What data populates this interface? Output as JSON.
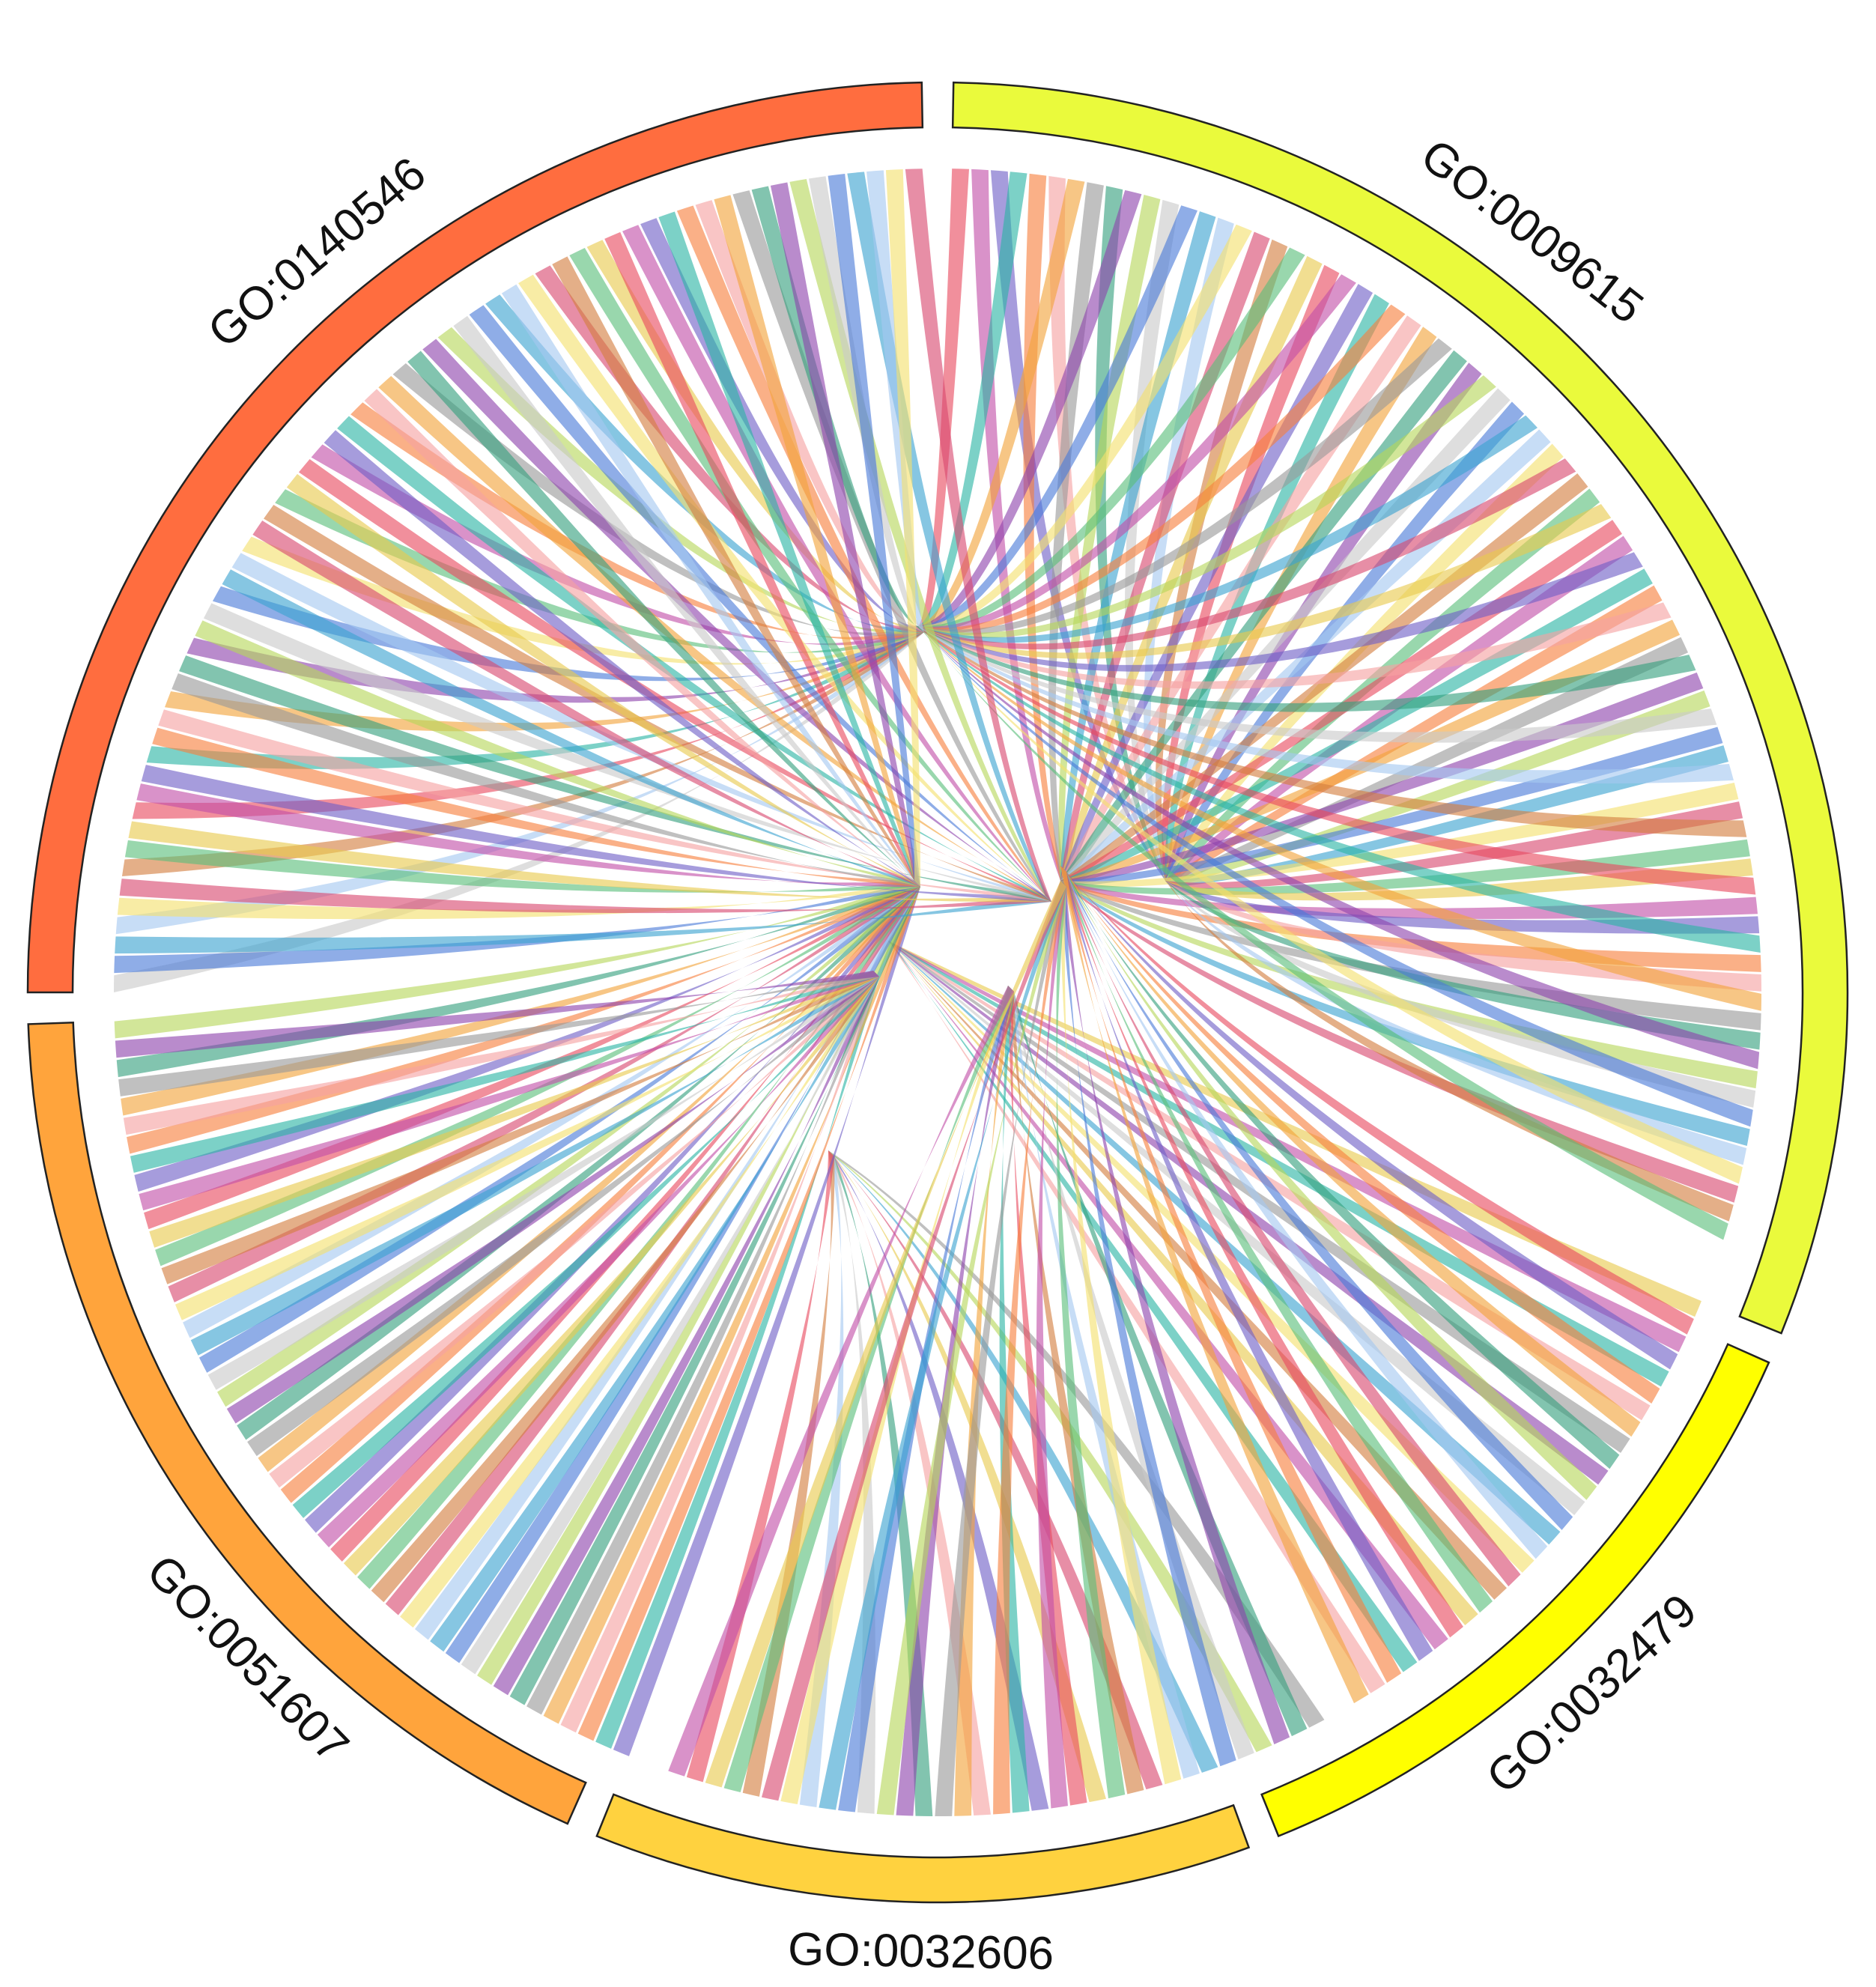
{
  "diagram": {
    "type": "chord",
    "sectors": [
      {
        "id": "GO:0009615",
        "label": "GO:0009615",
        "color": "#EAFA3C",
        "genes": 78
      },
      {
        "id": "GO:0032479",
        "label": "GO:0032479",
        "color": "#FFFF00",
        "genes": 0
      },
      {
        "id": "GO:0032606",
        "label": "GO:0032606",
        "color": "#FFD23F",
        "genes": 0
      },
      {
        "id": "GO:0051607",
        "label": "GO:0051607",
        "color": "#FFA43C",
        "genes": 0
      },
      {
        "id": "GO:0140546",
        "label": "GO:0140546",
        "color": "#FF6D3F",
        "genes": 0
      }
    ],
    "ribbon_palette": [
      "#E84A5F",
      "#2BB5A5",
      "#F2A33A",
      "#8E44AD",
      "#4A7BD8",
      "#F4E06D",
      "#5BBF7A",
      "#C24FA8",
      "#F77F3D",
      "#999999",
      "#B6D75A",
      "#3BA3D0",
      "#D9486F",
      "#E9C94E",
      "#6F5FC6",
      "#F6A2A2",
      "#35A07E",
      "#C9C9C9",
      "#A4C8F0",
      "#D37E3F"
    ]
  }
}
